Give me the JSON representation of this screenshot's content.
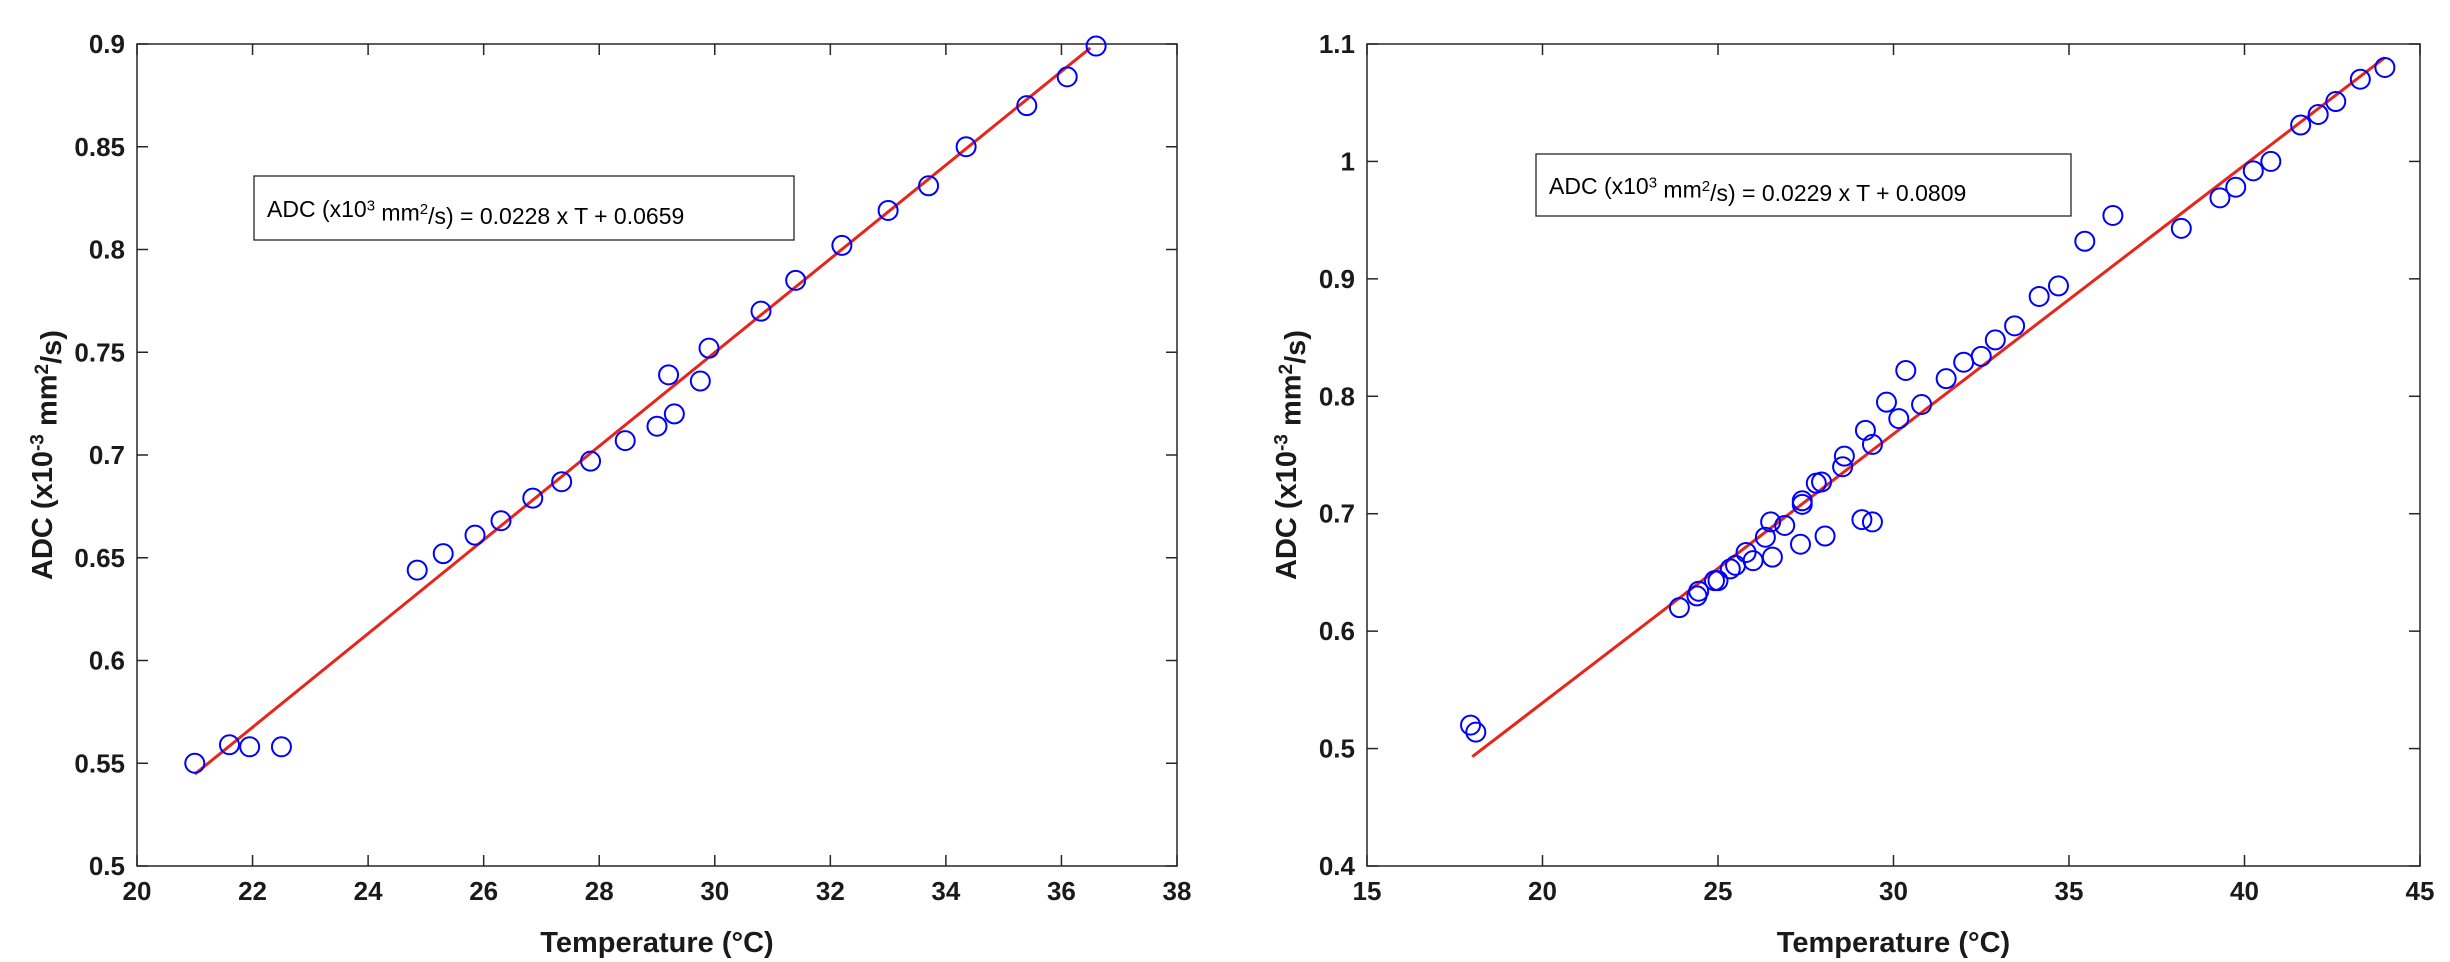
{
  "chart_data": [
    {
      "type": "scatter",
      "xlabel": "Temperature (°C)",
      "ylabel_parts": [
        "ADC (x10",
        "-3",
        " mm",
        "2",
        "/s)"
      ],
      "xlim": [
        20,
        38
      ],
      "ylim": [
        0.5,
        0.9
      ],
      "xticks": [
        20,
        22,
        24,
        26,
        28,
        30,
        32,
        34,
        36,
        38
      ],
      "xtick_labels": [
        "20",
        "22",
        "24",
        "26",
        "28",
        "30",
        "32",
        "34",
        "36",
        "38"
      ],
      "yticks": [
        0.5,
        0.55,
        0.6,
        0.65,
        0.7,
        0.75,
        0.8,
        0.85,
        0.9
      ],
      "ytick_labels": [
        "0.5",
        "0.55",
        "0.6",
        "0.65",
        "0.7",
        "0.75",
        "0.8",
        "0.85",
        "0.9"
      ],
      "annotation_parts": [
        "ADC (x10",
        "3",
        " mm",
        "2",
        "/s) = 0.0228 x T + 0.0659"
      ],
      "grid": false,
      "marker_color": "#0000ff",
      "fit_color": "#e8251a",
      "fit": {
        "slope": 0.0228,
        "intercept": 0.0659,
        "x_range": [
          21.0,
          36.5
        ]
      },
      "points": {
        "x": [
          21.0,
          21.6,
          21.95,
          22.5,
          24.85,
          25.3,
          25.85,
          26.3,
          26.85,
          27.35,
          27.85,
          28.45,
          29.0,
          29.2,
          29.3,
          29.75,
          29.9,
          30.8,
          31.4,
          32.2,
          33.0,
          33.7,
          34.35,
          35.4,
          36.1,
          36.6
        ],
        "y": [
          0.55,
          0.559,
          0.558,
          0.558,
          0.644,
          0.652,
          0.661,
          0.668,
          0.679,
          0.687,
          0.697,
          0.707,
          0.714,
          0.739,
          0.72,
          0.736,
          0.752,
          0.77,
          0.785,
          0.802,
          0.819,
          0.831,
          0.85,
          0.87,
          0.884,
          0.899
        ]
      }
    },
    {
      "type": "scatter",
      "xlabel": "Temperature (°C)",
      "ylabel_parts": [
        "ADC (x10",
        "-3",
        " mm",
        "2",
        "/s)"
      ],
      "xlim": [
        15,
        45
      ],
      "ylim": [
        0.4,
        1.1
      ],
      "xticks": [
        15,
        20,
        25,
        30,
        35,
        40,
        45
      ],
      "xtick_labels": [
        "15",
        "20",
        "25",
        "30",
        "35",
        "40",
        "45"
      ],
      "yticks": [
        0.4,
        0.5,
        0.6,
        0.7,
        0.8,
        0.9,
        1.0,
        1.1
      ],
      "ytick_labels": [
        "0.4",
        "0.5",
        "0.6",
        "0.7",
        "0.8",
        "0.9",
        "1",
        "1.1"
      ],
      "annotation_parts": [
        "ADC (x10",
        "3",
        " mm",
        "2",
        "/s) = 0.0229 x T + 0.0809"
      ],
      "grid": false,
      "marker_color": "#0000ff",
      "fit_color": "#e8251a",
      "fit": {
        "slope": 0.0229,
        "intercept": 0.0809,
        "x_range": [
          18.0,
          44.0
        ]
      },
      "points": {
        "x": [
          17.95,
          18.1,
          23.9,
          24.4,
          24.45,
          24.9,
          25.0,
          25.35,
          25.5,
          25.8,
          26.0,
          26.35,
          26.55,
          26.5,
          26.9,
          27.35,
          27.4,
          27.4,
          27.8,
          28.05,
          27.95,
          28.55,
          28.6,
          29.1,
          29.2,
          29.4,
          29.4,
          29.8,
          30.15,
          30.35,
          30.8,
          31.5,
          32.0,
          32.5,
          32.9,
          33.45,
          34.15,
          34.7,
          35.45,
          36.25,
          38.2,
          39.3,
          39.75,
          40.25,
          40.75,
          41.6,
          42.1,
          42.6,
          43.3,
          44.0
        ],
        "y": [
          0.52,
          0.514,
          0.62,
          0.63,
          0.634,
          0.643,
          0.643,
          0.653,
          0.656,
          0.667,
          0.66,
          0.68,
          0.663,
          0.693,
          0.69,
          0.674,
          0.708,
          0.711,
          0.726,
          0.681,
          0.727,
          0.74,
          0.749,
          0.695,
          0.771,
          0.693,
          0.759,
          0.795,
          0.781,
          0.822,
          0.793,
          0.815,
          0.829,
          0.834,
          0.848,
          0.86,
          0.885,
          0.894,
          0.932,
          0.954,
          0.943,
          0.969,
          0.978,
          0.992,
          1.0,
          1.031,
          1.04,
          1.051,
          1.07,
          1.08
        ]
      }
    }
  ]
}
